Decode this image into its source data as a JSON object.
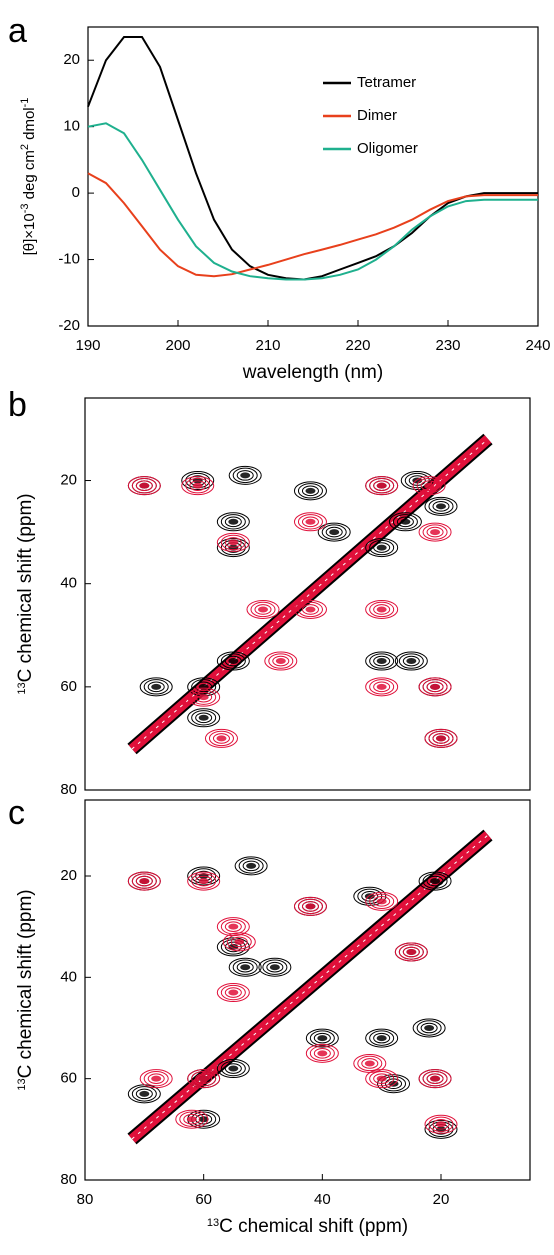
{
  "chart_data": [
    {
      "type": "line",
      "panel_label": "a",
      "xlabel": "wavelength (nm)",
      "ylabel": [
        {
          "text": "[θ]×10",
          "sup": false
        },
        {
          "text": "-3",
          "sup": true
        },
        {
          "text": " deg cm",
          "sup": false
        },
        {
          "text": "2",
          "sup": true
        },
        {
          "text": " dmol",
          "sup": false
        },
        {
          "text": "-1",
          "sup": true
        }
      ],
      "x": [
        190,
        192,
        194,
        196,
        198,
        200,
        202,
        204,
        206,
        208,
        210,
        212,
        214,
        216,
        218,
        220,
        222,
        224,
        226,
        228,
        230,
        232,
        234,
        236,
        238,
        240
      ],
      "xlim": [
        190,
        240
      ],
      "xticks": [
        190,
        200,
        210,
        220,
        230,
        240
      ],
      "ylim": [
        -20,
        25
      ],
      "yticks": [
        -20,
        -10,
        0,
        10,
        20
      ],
      "legend": "upper right",
      "series": [
        {
          "name": "Tetramer",
          "color": "#000000",
          "values": [
            13,
            20,
            23.5,
            23.5,
            19,
            11,
            3,
            -4,
            -8.5,
            -11,
            -12.3,
            -12.8,
            -13,
            -12.5,
            -11.5,
            -10.5,
            -9.5,
            -8,
            -6,
            -3.5,
            -1.5,
            -0.5,
            0,
            0,
            0,
            0
          ]
        },
        {
          "name": "Dimer",
          "color": "#e8401c",
          "values": [
            3,
            1.5,
            -1.5,
            -5,
            -8.5,
            -11,
            -12.3,
            -12.5,
            -12.2,
            -11.5,
            -10.8,
            -10,
            -9.2,
            -8.5,
            -7.8,
            -7,
            -6.2,
            -5.2,
            -4,
            -2.5,
            -1.2,
            -0.5,
            -0.3,
            -0.3,
            -0.3,
            -0.3
          ]
        },
        {
          "name": "Oligomer",
          "color": "#1fb08e",
          "values": [
            10,
            10.5,
            9,
            5,
            0.5,
            -4,
            -8,
            -10.5,
            -11.8,
            -12.5,
            -12.8,
            -13,
            -13,
            -12.8,
            -12.3,
            -11.5,
            -10,
            -8,
            -5.5,
            -3.5,
            -2,
            -1.2,
            -1,
            -1,
            -1,
            -1
          ]
        }
      ]
    },
    {
      "type": "contour",
      "panel_label": "b",
      "ylabel": [
        {
          "text": "13",
          "sup": true
        },
        {
          "text": "C chemical shift (ppm)",
          "sup": false
        }
      ],
      "xlim": [
        80,
        5
      ],
      "ylim": [
        80,
        4
      ],
      "yticks": [
        20,
        40,
        60,
        80
      ],
      "series": [
        {
          "color": "#000000",
          "x": [
            70,
            61,
            53,
            42,
            30,
            24,
            20,
            55,
            30,
            26,
            60,
            55,
            30,
            25,
            21,
            20,
            68,
            60,
            55,
            38
          ],
          "y": [
            21,
            20,
            19,
            22,
            21,
            20,
            25,
            33,
            33,
            28,
            60,
            55,
            55,
            55,
            60,
            70,
            60,
            66,
            28,
            30
          ]
        },
        {
          "color": "#e0103a",
          "x": [
            70,
            61,
            55,
            42,
            30,
            22,
            21,
            50,
            42,
            21,
            30,
            20,
            60,
            57,
            47,
            30
          ],
          "y": [
            21,
            21,
            32,
            28,
            21,
            21,
            30,
            45,
            45,
            60,
            60,
            70,
            62,
            70,
            55,
            45
          ]
        }
      ]
    },
    {
      "type": "contour",
      "panel_label": "c",
      "xlabel": [
        {
          "text": "13",
          "sup": true
        },
        {
          "text": "C chemical shift (ppm)",
          "sup": false
        }
      ],
      "ylabel": [
        {
          "text": "13",
          "sup": true
        },
        {
          "text": "C chemical shift (ppm)",
          "sup": false
        }
      ],
      "xlim": [
        80,
        5
      ],
      "xticks": [
        80,
        60,
        40,
        20
      ],
      "ylim": [
        80,
        5
      ],
      "yticks": [
        20,
        40,
        60,
        80
      ],
      "series": [
        {
          "color": "#000000",
          "x": [
            70,
            60,
            52,
            42,
            55,
            53,
            48,
            25,
            21,
            32,
            40,
            30,
            22,
            60,
            55,
            28,
            21,
            20,
            60,
            70
          ],
          "y": [
            21,
            20,
            18,
            26,
            34,
            38,
            38,
            35,
            21,
            24,
            52,
            52,
            50,
            60,
            58,
            61,
            60,
            70,
            68,
            63
          ]
        },
        {
          "color": "#e0103a",
          "x": [
            70,
            60,
            55,
            54,
            42,
            55,
            30,
            25,
            32,
            40,
            30,
            21,
            20,
            60,
            62,
            68
          ],
          "y": [
            21,
            21,
            30,
            33,
            26,
            43,
            25,
            35,
            57,
            55,
            60,
            60,
            69,
            60,
            68,
            60
          ]
        }
      ]
    }
  ]
}
